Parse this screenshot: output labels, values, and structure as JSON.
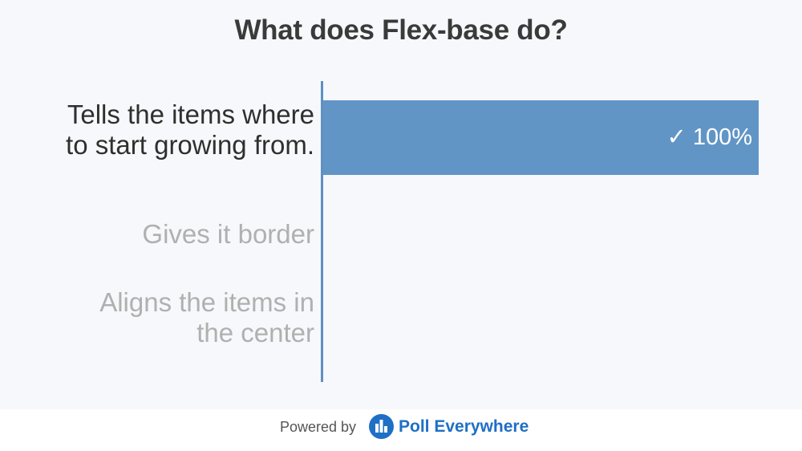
{
  "title": "What does Flex-base do?",
  "colors": {
    "bar": "#6195c6",
    "axis": "#5f8fc3",
    "correct_text": "#2f2f2f",
    "other_text": "#b0b0b0",
    "brand": "#1f6fc5"
  },
  "chart_data": {
    "type": "bar",
    "orientation": "horizontal",
    "title": "What does Flex-base do?",
    "categories": [
      "Tells the items where to start growing from.",
      "Gives it border",
      "Aligns the items in the center"
    ],
    "values": [
      100,
      0,
      0
    ],
    "value_labels": [
      "✓ 100%",
      "",
      ""
    ],
    "correct": [
      true,
      false,
      false
    ],
    "xlim": [
      0,
      100
    ],
    "grid": false,
    "legend": "none"
  },
  "labels": {
    "cat0_line1": "Tells the items where",
    "cat0_line2": "to start growing from.",
    "cat1_line1": "Gives it border",
    "cat2_line1": "Aligns the items in",
    "cat2_line2": "the center"
  },
  "footer": {
    "powered_by": "Powered by",
    "brand_name": "Poll Everywhere",
    "logo_icon": "poll-everywhere-logo-icon"
  }
}
